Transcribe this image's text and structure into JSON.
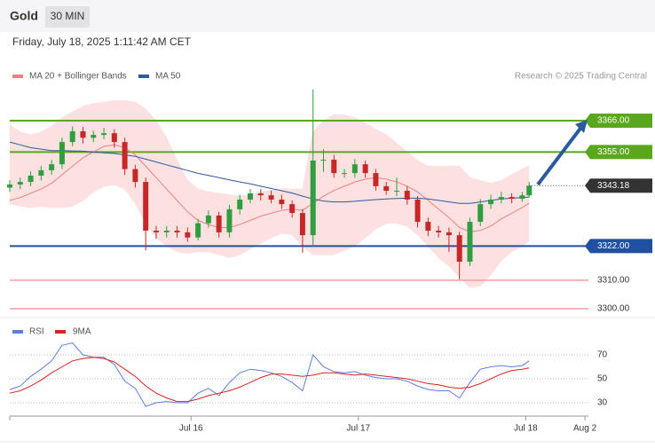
{
  "header": {
    "symbol": "Gold",
    "interval": "30 MIN",
    "timestamp": "Friday, July 18, 2025 1:11:42 AM CET"
  },
  "chart_data": [
    {
      "type": "candlestick",
      "source": "Research © 2025 Trading Central",
      "up_color": "#2e9e3e",
      "down_color": "#c62828",
      "xlim": [
        0,
        166
      ],
      "ylim": [
        3297,
        3378
      ],
      "x": [
        0,
        3,
        6,
        9,
        12,
        15,
        18,
        21,
        24,
        27,
        30,
        33,
        36,
        39,
        42,
        45,
        48,
        51,
        54,
        57,
        60,
        63,
        66,
        69,
        72,
        75,
        78,
        81,
        84,
        87,
        90,
        93,
        96,
        99,
        102,
        105,
        108,
        111,
        114,
        117,
        120,
        123,
        126,
        129,
        132,
        135,
        138,
        141,
        144,
        147,
        149
      ],
      "open": [
        3342.5,
        3343.6,
        3344.5,
        3346.7,
        3348.6,
        3350.7,
        3358.5,
        3362.3,
        3360,
        3361,
        3361.6,
        3358.5,
        3349,
        3344.5,
        3327.4,
        3326.8,
        3327.4,
        3326.8,
        3325,
        3330,
        3332.7,
        3326.8,
        3334.9,
        3338.3,
        3340.5,
        3339.8,
        3338.3,
        3336.7,
        3333.6,
        3325.8,
        3352,
        3352.3,
        3347.6,
        3347.6,
        3350.7,
        3347.6,
        3343,
        3341.4,
        3341.4,
        3338.3,
        3330.5,
        3327.4,
        3326.8,
        3325.8,
        3316.5,
        3330.5,
        3336.7,
        3338.3,
        3339.2,
        3338.6,
        3339.8
      ],
      "high": [
        3345.1,
        3346,
        3348.2,
        3350.1,
        3352.2,
        3360,
        3364,
        3363.8,
        3362.5,
        3363.5,
        3363,
        3360,
        3350.5,
        3346,
        3329,
        3329,
        3329,
        3328.5,
        3331.5,
        3334.5,
        3334,
        3336.5,
        3340,
        3342,
        3342,
        3341.5,
        3340,
        3338,
        3335,
        3377,
        3356,
        3354,
        3349,
        3352.5,
        3352,
        3349,
        3344.5,
        3346,
        3343,
        3339.5,
        3332,
        3329,
        3328.5,
        3327,
        3332,
        3338.5,
        3340,
        3341,
        3340.5,
        3341,
        3344.5
      ],
      "low": [
        3341,
        3342,
        3343,
        3345,
        3347,
        3349,
        3357,
        3358,
        3358.5,
        3359.5,
        3356.5,
        3347,
        3342.5,
        3320.5,
        3324.5,
        3325,
        3325,
        3323.5,
        3324,
        3328.5,
        3325,
        3325,
        3333,
        3337,
        3338,
        3337,
        3335,
        3332,
        3319.6,
        3322,
        3348,
        3346,
        3346,
        3346,
        3346,
        3341.5,
        3340,
        3339.5,
        3336.5,
        3328.5,
        3325.5,
        3325,
        3320,
        3310.3,
        3315,
        3329,
        3335,
        3337,
        3337,
        3337.5,
        3339
      ],
      "close": [
        3343.6,
        3344.5,
        3346.7,
        3348.6,
        3350.7,
        3358.5,
        3362.3,
        3360,
        3361,
        3361.6,
        3358.5,
        3349,
        3344.5,
        3327.4,
        3326.8,
        3327.4,
        3326.8,
        3325,
        3330,
        3332.7,
        3326.8,
        3334.9,
        3338.3,
        3340.5,
        3339.8,
        3338.3,
        3336.7,
        3333.6,
        3325.8,
        3352,
        3352.3,
        3347.6,
        3347.6,
        3350.7,
        3347.6,
        3343,
        3341.4,
        3341.4,
        3338.3,
        3330.5,
        3327.4,
        3326.8,
        3325.8,
        3316.5,
        3330.5,
        3336.7,
        3338.3,
        3339.2,
        3338.6,
        3339.8,
        3343.18
      ],
      "series": [
        {
          "name": "MA 20 + Bollinger Bands",
          "color": "#f08080",
          "band_color": "#fde0e0",
          "values": [
            3338,
            3339,
            3340.5,
            3342,
            3344,
            3347,
            3350,
            3353,
            3355,
            3357,
            3357.5,
            3356.5,
            3354,
            3350,
            3346,
            3342,
            3338,
            3334,
            3331,
            3329.5,
            3328.5,
            3328.5,
            3329.5,
            3331,
            3332.5,
            3333.5,
            3334.5,
            3335,
            3334.5,
            3337,
            3339.5,
            3341.5,
            3343,
            3344.5,
            3345.5,
            3346,
            3345.5,
            3344.5,
            3343,
            3341,
            3338,
            3335,
            3332,
            3328.5,
            3327,
            3327.5,
            3329,
            3331.5,
            3333.5,
            3335.5,
            3337
          ],
          "upper": [
            3364.5,
            3362,
            3361,
            3362,
            3364,
            3367,
            3369,
            3371,
            3372,
            3372.5,
            3373,
            3373,
            3372.5,
            3370,
            3366,
            3360,
            3352,
            3345,
            3342,
            3341,
            3340.5,
            3340,
            3339.5,
            3340,
            3341,
            3341.5,
            3342,
            3342,
            3342,
            3362,
            3366,
            3368,
            3368,
            3367,
            3365,
            3363,
            3361,
            3358,
            3355,
            3352,
            3350,
            3350,
            3350,
            3350,
            3346,
            3345,
            3344,
            3345,
            3347,
            3349,
            3350
          ],
          "lower": [
            3337,
            3336,
            3335.5,
            3336,
            3335.5,
            3335.5,
            3336,
            3338,
            3341,
            3343,
            3343.5,
            3342,
            3337,
            3330,
            3325,
            3322,
            3320,
            3319.5,
            3320,
            3320,
            3319,
            3318,
            3319,
            3321,
            3323,
            3325,
            3326.5,
            3326,
            3322,
            3319,
            3319,
            3319,
            3320.5,
            3322,
            3325,
            3328,
            3330,
            3330,
            3329,
            3326,
            3322,
            3318,
            3315,
            3311,
            3307.5,
            3308,
            3312,
            3317,
            3320,
            3322,
            3324
          ]
        },
        {
          "name": "MA 50",
          "color": "#2c5aa0",
          "values": [
            3358.5,
            3357.5,
            3356.5,
            3356,
            3355.5,
            3355.5,
            3355.4,
            3355.3,
            3355,
            3354.7,
            3354.5,
            3354,
            3353.5,
            3352.5,
            3351.5,
            3350.5,
            3349.5,
            3348.5,
            3347.5,
            3346.8,
            3346,
            3345.2,
            3344.5,
            3343.8,
            3343,
            3342.2,
            3341.4,
            3340.6,
            3339.5,
            3338.5,
            3337.8,
            3337.5,
            3337.5,
            3337.7,
            3338,
            3338.3,
            3338.5,
            3338.7,
            3338.8,
            3338.8,
            3338.5,
            3338,
            3337.5,
            3337,
            3337,
            3337.5,
            3338,
            3338.5,
            3338.8,
            3339,
            3339.2
          ]
        }
      ],
      "levels": [
        {
          "value": 3366,
          "label": "3366.00",
          "color": "#5aa61c",
          "boxed": true
        },
        {
          "value": 3355,
          "label": "3355.00",
          "color": "#5aa61c",
          "boxed": true
        },
        {
          "value": 3322,
          "label": "3322.00",
          "color": "#2050a0",
          "boxed": true
        },
        {
          "value": 3310,
          "label": "3310.00",
          "color": "#f0a0a0",
          "boxed": false
        },
        {
          "value": 3300,
          "label": "3300.00",
          "color": "#f0a0a0",
          "boxed": false
        }
      ],
      "last_price": 3343.18,
      "last_price_color": "#333333"
    },
    {
      "type": "line",
      "ylim": [
        22,
        81
      ],
      "yticks": [
        70,
        50,
        30
      ],
      "grid": true,
      "xticks": [
        {
          "value": 52,
          "label": "Jul 16"
        },
        {
          "value": 100,
          "label": "Jul 17"
        },
        {
          "value": 148,
          "label": "Jul 18"
        },
        {
          "value": 165,
          "label": "Aug 2"
        }
      ],
      "series": [
        {
          "name": "RSI",
          "color": "#5b7fe0",
          "values": [
            41,
            44,
            52,
            58,
            65,
            78,
            80,
            70,
            68,
            68,
            62,
            48,
            42,
            27,
            30,
            31,
            30,
            30,
            38,
            42,
            36,
            47,
            55,
            58,
            57,
            55,
            52,
            47,
            40,
            70,
            60,
            56,
            55,
            56,
            53,
            51,
            50,
            50,
            48,
            44,
            41,
            40,
            40,
            34,
            47,
            58,
            60,
            61,
            60,
            61,
            65
          ]
        },
        {
          "name": "9MA",
          "color": "#e02020",
          "values": [
            38,
            40,
            44,
            49,
            55,
            60,
            65,
            67,
            68,
            67,
            64,
            58,
            52,
            44,
            38,
            34,
            31,
            31,
            33,
            36,
            38,
            40,
            43,
            47,
            51,
            54,
            54,
            53,
            52,
            53,
            55,
            55,
            54,
            53,
            54,
            53,
            52,
            51,
            50,
            48,
            46,
            45,
            43,
            42,
            43,
            46,
            50,
            54,
            57,
            58,
            59
          ]
        }
      ]
    }
  ]
}
